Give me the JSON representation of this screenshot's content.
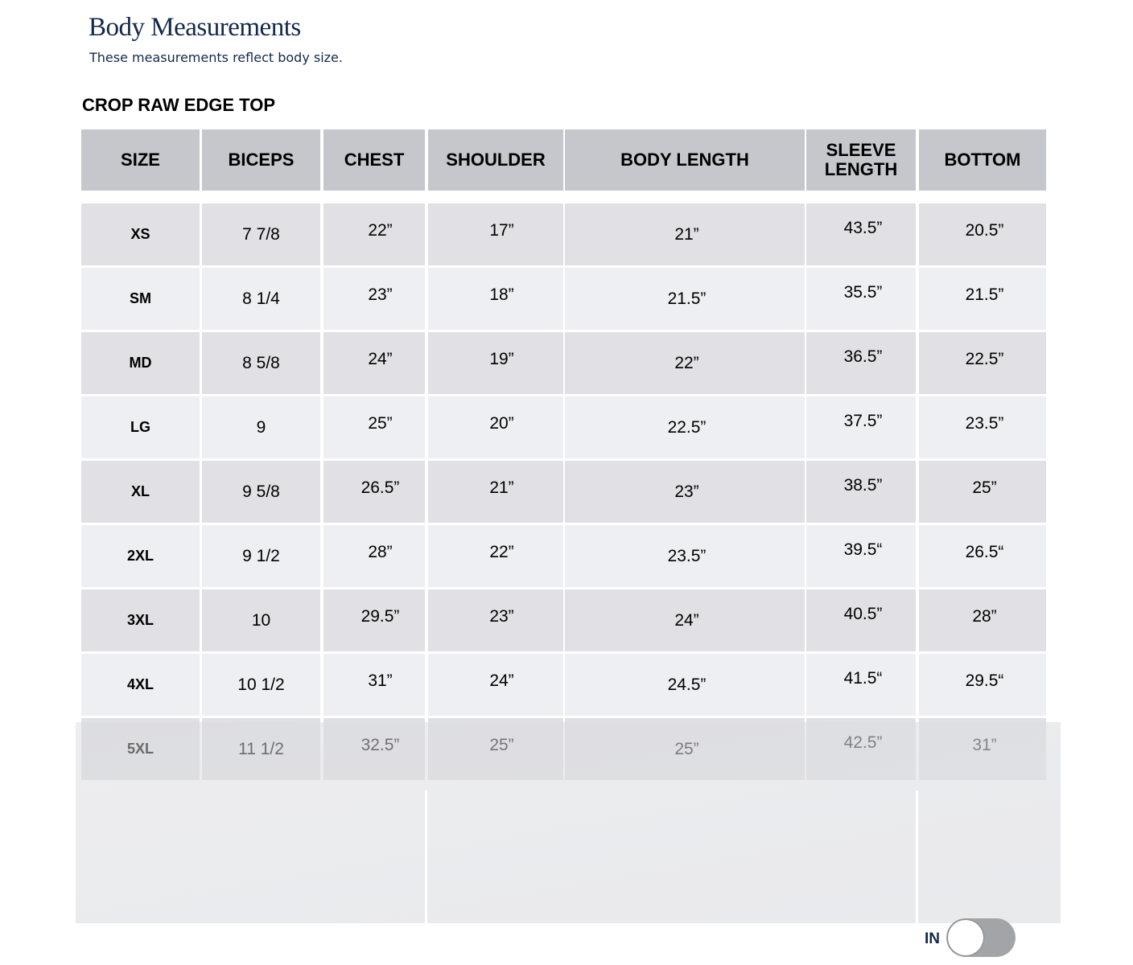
{
  "header": {
    "title": "Body Measurements",
    "subtitle": "These measurements reflect body size."
  },
  "product_name": "CROP RAW EDGE TOP",
  "table": {
    "columns": [
      "SIZE",
      "BICEPS",
      "CHEST",
      "SHOULDER",
      "BODY LENGTH",
      "SLEEVE LENGTH",
      "BOTTOM"
    ],
    "rows": [
      [
        "XS",
        "7 7/8",
        "22”",
        "17”",
        "21”",
        "43.5”",
        "20.5”"
      ],
      [
        "SM",
        "8 1/4",
        "23”",
        "18”",
        "21.5”",
        "35.5”",
        "21.5”"
      ],
      [
        "MD",
        "8 5/8",
        "24”",
        "19”",
        "22”",
        "36.5”",
        "22.5”"
      ],
      [
        "LG",
        "9",
        "25”",
        "20”",
        "22.5”",
        "37.5”",
        "23.5”"
      ],
      [
        "XL",
        "9 5/8",
        "26.5”",
        "21”",
        "23”",
        "38.5”",
        "25”"
      ],
      [
        "2XL",
        "9 1/2",
        "28”",
        "22”",
        "23.5”",
        "39.5“",
        "26.5“"
      ],
      [
        "3XL",
        "10",
        "29.5”",
        "23”",
        "24”",
        "40.5”",
        "28”"
      ],
      [
        "4XL",
        "10 1/2",
        "31”",
        "24”",
        "24.5”",
        "41.5“",
        "29.5“"
      ],
      [
        "5XL",
        "11 1/2",
        "32.5”",
        "25”",
        "25”",
        "42.5”",
        "31”"
      ]
    ]
  },
  "unit_toggle": {
    "label": "IN",
    "on": false,
    "knob_color": "#ffffff",
    "track_color": "#a2a4a8"
  },
  "colors": {
    "title": "#13294b",
    "header_bg": "#c5c7cc",
    "row_dark": "#e1e1e5",
    "row_light": "#eeeff2"
  }
}
